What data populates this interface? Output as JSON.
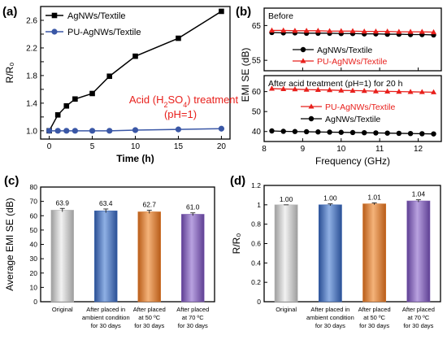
{
  "panels": {
    "a": {
      "label": "(a)"
    },
    "b": {
      "label": "(b)"
    },
    "c": {
      "label": "(c)"
    },
    "d": {
      "label": "(d)"
    }
  },
  "chart_data": [
    {
      "id": "a",
      "type": "line",
      "xlabel": "Time (h)",
      "ylabel": "R/R₀",
      "xlim": [
        -1,
        21
      ],
      "ylim": [
        0.88,
        2.8
      ],
      "xticks": [
        0,
        5,
        10,
        15,
        20
      ],
      "yticks": [
        1.0,
        1.2,
        1.4,
        1.6,
        1.8,
        2.0,
        2.2,
        2.4,
        2.6
      ],
      "ytick_labels": [
        "1.0",
        "",
        "1.4",
        "",
        "1.8",
        "",
        "2.2",
        "",
        "2.6"
      ],
      "annotation": [
        "Acid (H",
        "2",
        "SO",
        "4",
        ") treatment",
        "(pH=1)"
      ],
      "legend": "top-left",
      "series": [
        {
          "name": "AgNWs/Textile",
          "color": "#000000",
          "marker": "square",
          "x": [
            0,
            1,
            2,
            3,
            5,
            7,
            10,
            15,
            20
          ],
          "values": [
            1.0,
            1.23,
            1.36,
            1.46,
            1.54,
            1.79,
            2.08,
            2.34,
            2.73
          ]
        },
        {
          "name": "PU-AgNWs/Textile",
          "color": "#3a57a6",
          "marker": "circle",
          "x": [
            0,
            1,
            2,
            3,
            5,
            7,
            10,
            15,
            20
          ],
          "values": [
            1.0,
            1.0,
            1.0,
            1.0,
            1.0,
            1.0,
            1.01,
            1.02,
            1.03
          ]
        }
      ]
    },
    {
      "id": "b",
      "type": "line",
      "xlabel": "Frequency (GHz)",
      "ylabel": "EMI SE (dB)",
      "xlim": [
        8.0,
        12.6
      ],
      "xticks": [
        8,
        9,
        10,
        11,
        12
      ],
      "grid": false,
      "subplots": [
        {
          "title": "Before",
          "ylim": [
            52,
            70
          ],
          "yticks": [
            55,
            65
          ],
          "series": [
            {
              "name": "AgNWs/Textile",
              "color": "#000000",
              "marker": "circle",
              "x": [
                8.2,
                8.5,
                8.8,
                9.1,
                9.4,
                9.7,
                10.0,
                10.3,
                10.6,
                10.9,
                11.2,
                11.5,
                11.8,
                12.1,
                12.4
              ],
              "values": [
                63.0,
                62.9,
                62.9,
                62.8,
                62.8,
                62.8,
                62.7,
                62.7,
                62.6,
                62.6,
                62.5,
                62.5,
                62.4,
                62.4,
                62.3
              ]
            },
            {
              "name": "PU-AgNWs/Textile",
              "color": "#e8201c",
              "marker": "triangle",
              "x": [
                8.2,
                8.5,
                8.8,
                9.1,
                9.4,
                9.7,
                10.0,
                10.3,
                10.6,
                10.9,
                11.2,
                11.5,
                11.8,
                12.1,
                12.4
              ],
              "values": [
                63.6,
                63.6,
                63.5,
                63.5,
                63.5,
                63.4,
                63.4,
                63.4,
                63.3,
                63.3,
                63.3,
                63.2,
                63.2,
                63.2,
                63.1
              ]
            }
          ]
        },
        {
          "title": "After acid treatment (pH=1) for 20 h",
          "ylim": [
            35,
            68
          ],
          "yticks": [
            40,
            50,
            60
          ],
          "series": [
            {
              "name": "PU-AgNWs/Textile",
              "color": "#e8201c",
              "marker": "triangle",
              "x": [
                8.2,
                8.5,
                8.8,
                9.1,
                9.4,
                9.7,
                10.0,
                10.3,
                10.6,
                10.9,
                11.2,
                11.5,
                11.8,
                12.1,
                12.4
              ],
              "values": [
                61.5,
                61.3,
                61.2,
                61.0,
                60.9,
                60.8,
                60.6,
                60.5,
                60.4,
                60.2,
                60.1,
                60.0,
                59.9,
                59.8,
                59.7
              ]
            },
            {
              "name": "AgNWs/Textile",
              "color": "#000000",
              "marker": "circle",
              "x": [
                8.2,
                8.5,
                8.8,
                9.1,
                9.4,
                9.7,
                10.0,
                10.3,
                10.6,
                10.9,
                11.2,
                11.5,
                11.8,
                12.1,
                12.4
              ],
              "values": [
                40.3,
                40.1,
                40.0,
                39.9,
                39.8,
                39.7,
                39.6,
                39.5,
                39.4,
                39.3,
                39.2,
                39.1,
                39.0,
                38.9,
                38.8
              ]
            }
          ]
        }
      ]
    },
    {
      "id": "c",
      "type": "bar",
      "ylabel": "Average EMI SE (dB)",
      "ylim": [
        0,
        80
      ],
      "yticks": [
        0,
        10,
        20,
        30,
        40,
        50,
        60,
        70,
        80
      ],
      "categories": [
        [
          "Original"
        ],
        [
          "After placed in",
          "ambient condition",
          "for 30 days"
        ],
        [
          "After placed",
          "at 50 ºC",
          "for 30 days"
        ],
        [
          "After placed",
          "at 70 ºC",
          "for 30 days"
        ]
      ],
      "values": [
        63.9,
        63.4,
        62.7,
        61.0
      ],
      "value_labels": [
        "63.9",
        "63.4",
        "62.7",
        "61.0"
      ],
      "errors": [
        1.2,
        1.3,
        1.1,
        1.0
      ],
      "colors": [
        "#b9b9b9",
        "#3e68b0",
        "#d3772f",
        "#7c5bb0"
      ]
    },
    {
      "id": "d",
      "type": "bar",
      "ylabel": "R/R₀",
      "ylim": [
        0,
        1.2
      ],
      "yticks": [
        0,
        0.2,
        0.4,
        0.6,
        0.8,
        1.0,
        1.2
      ],
      "ytick_labels": [
        "0",
        "0.2",
        "0.4",
        "0.6",
        "0.8",
        "1",
        "1.2"
      ],
      "categories": [
        [
          "Original"
        ],
        [
          "After placed in",
          "ambient condition",
          "for 30 days"
        ],
        [
          "After placed",
          "at 50 ºC",
          "for 30 days"
        ],
        [
          "After placed",
          "at 70 ºC",
          "for 30 days"
        ]
      ],
      "values": [
        1.0,
        1.0,
        1.01,
        1.04
      ],
      "value_labels": [
        "1.00",
        "1.00",
        "1.01",
        "1.04"
      ],
      "errors": [
        0.0,
        0.01,
        0.01,
        0.012
      ],
      "colors": [
        "#b9b9b9",
        "#3e68b0",
        "#d3772f",
        "#7c5bb0"
      ]
    }
  ]
}
